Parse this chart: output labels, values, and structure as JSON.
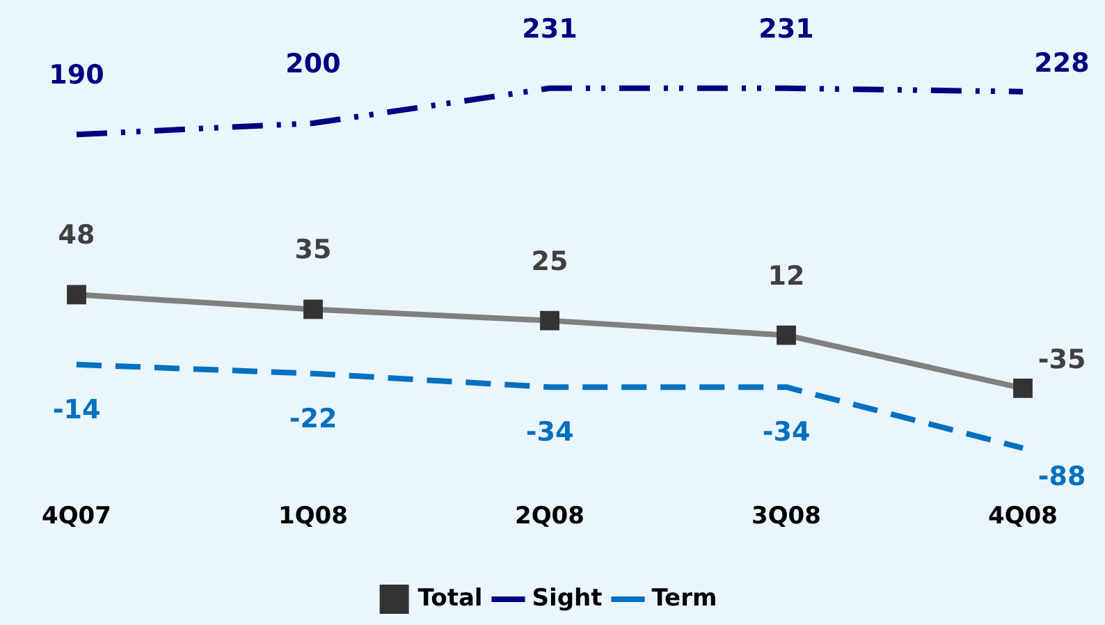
{
  "chart_data": {
    "type": "line",
    "categories": [
      "4Q07",
      "1Q08",
      "2Q08",
      "3Q08",
      "4Q08"
    ],
    "series": [
      {
        "name": "Total",
        "color": "#808080",
        "values": [
          48,
          35,
          25,
          12,
          -35
        ],
        "marker": "square",
        "line_style": "solid"
      },
      {
        "name": "Sight",
        "color": "#000080",
        "values": [
          190,
          200,
          231,
          231,
          228
        ],
        "marker": "none",
        "line_style": "dashed"
      },
      {
        "name": "Term",
        "color": "#0070c0",
        "values": [
          -14,
          -22,
          -34,
          -34,
          -88
        ],
        "marker": "none",
        "line_style": "dashed"
      }
    ],
    "tick_labels": "x",
    "data_labels": true,
    "grid": false,
    "legend": "bottom"
  }
}
